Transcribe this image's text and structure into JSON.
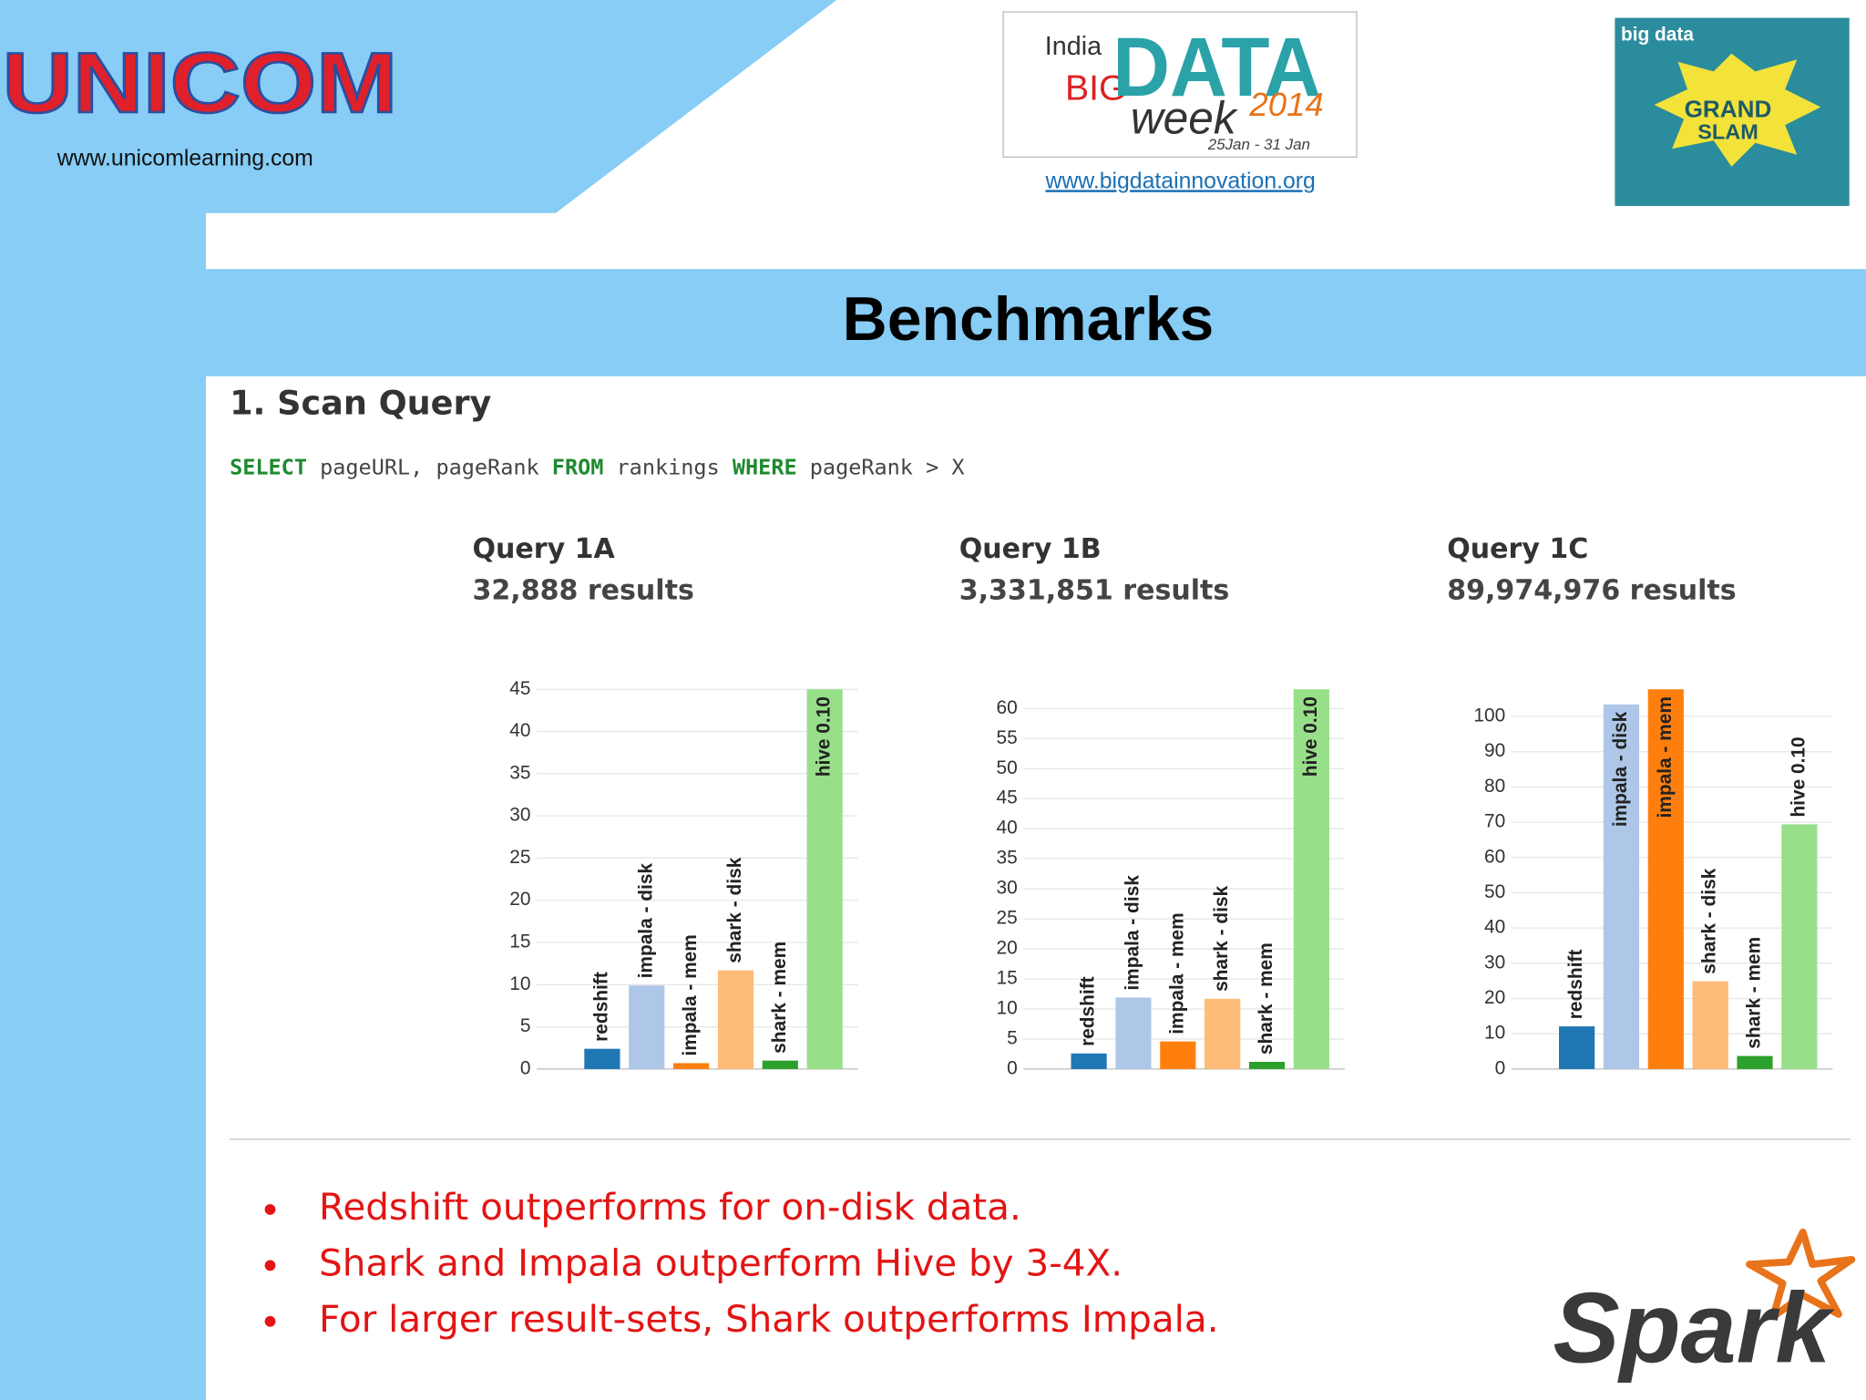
{
  "header": {
    "logo_text": "UNICOM",
    "website": "www.unicomlearning.com",
    "event_logo": [
      "India",
      "BIG",
      "DATA",
      "week",
      "2014",
      "25Jan - 31 Jan"
    ],
    "event_link": "www.bigdatainnovation.org",
    "badge": [
      "big data",
      "GRAND",
      "SLAM"
    ]
  },
  "title": "Benchmarks",
  "section": "1. Scan Query",
  "query": [
    "SELECT",
    " pageURL, pageRank ",
    "FROM",
    " rankings ",
    "WHERE",
    " pageRank > X"
  ],
  "chart_data": [
    {
      "type": "bar",
      "title": "Query 1A",
      "subtitle": "32,888 results",
      "categories": [
        "redshift",
        "impala - disk",
        "impala - mem",
        "shark - disk",
        "shark - mem",
        "hive 0.10"
      ],
      "values": [
        2.4,
        9.9,
        0.7,
        11.7,
        1.0,
        45
      ],
      "colors": [
        "#1f77b4",
        "#aec7e8",
        "#ff7f0e",
        "#ffbb78",
        "#2ca02c",
        "#98df8a"
      ],
      "ylim": [
        0,
        45
      ],
      "yticks": [
        0,
        5,
        10,
        15,
        20,
        25,
        30,
        35,
        40,
        45
      ],
      "grid": true
    },
    {
      "type": "bar",
      "title": "Query 1B",
      "subtitle": "3,331,851 results",
      "categories": [
        "redshift",
        "impala - disk",
        "impala - mem",
        "shark - disk",
        "shark - mem",
        "hive 0.10"
      ],
      "values": [
        2.6,
        11.9,
        4.6,
        11.7,
        1.2,
        63.2
      ],
      "colors": [
        "#1f77b4",
        "#aec7e8",
        "#ff7f0e",
        "#ffbb78",
        "#2ca02c",
        "#98df8a"
      ],
      "ylim": [
        0,
        63.2
      ],
      "yticks": [
        0,
        5,
        10,
        15,
        20,
        25,
        30,
        35,
        40,
        45,
        50,
        55,
        60
      ],
      "grid": true
    },
    {
      "type": "bar",
      "title": "Query 1C",
      "subtitle": "89,974,976 results",
      "categories": [
        "redshift",
        "impala - disk",
        "impala - mem",
        "shark - disk",
        "shark - mem",
        "hive 0.10"
      ],
      "values": [
        12.1,
        103.4,
        107.7,
        24.9,
        3.7,
        69.4
      ],
      "colors": [
        "#1f77b4",
        "#aec7e8",
        "#ff7f0e",
        "#ffbb78",
        "#2ca02c",
        "#98df8a"
      ],
      "ylim": [
        0,
        107.7
      ],
      "yticks": [
        0,
        10,
        20,
        30,
        40,
        50,
        60,
        70,
        80,
        90,
        100
      ],
      "grid": true
    }
  ],
  "bullets": [
    "Redshift outperforms for on-disk data.",
    "Shark and Impala outperform Hive by 3-4X.",
    "For larger result-sets, Shark outperforms Impala."
  ],
  "footer_logo": "Spark"
}
